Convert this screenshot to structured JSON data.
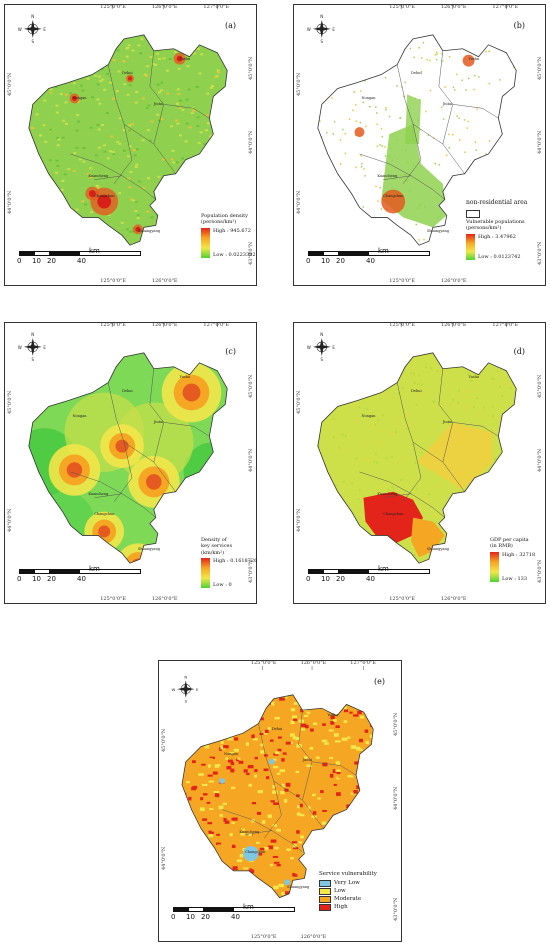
{
  "ticks_top": [
    "125°0'0\"E",
    "126°0'0\"E",
    "127°0'0\"E"
  ],
  "ticks_bottom": [
    "125°0'0\"E",
    "126°0'0\"E"
  ],
  "ticks_left": [
    "45°0'0\"N",
    "44°0'0\"N"
  ],
  "ticks_right": [
    "45°0'0\"N",
    "44°0'0\"N",
    "43°0'0\"N"
  ],
  "scalebar": {
    "l0": "0",
    "l1": "10",
    "l2": "20",
    "l3": "40",
    "unit": "km"
  },
  "towns": [
    "Yushu",
    "Dehui",
    "Nongan",
    "Jiutai",
    "Changchun",
    "Kuancheng",
    "Shuangyang"
  ],
  "panels": {
    "a": {
      "label": "(a)",
      "legend_title": "Population density",
      "legend_unit": "(persons/km²)",
      "high": "High : 945.672",
      "low": "Low : 0.0223392"
    },
    "b": {
      "label": "(b)",
      "extra_title": "non-residential area",
      "legend_title": "Vulnerable populations",
      "legend_unit": "(persons/km²)",
      "high": "High : 3.47962",
      "low": "Low : 0.0123742"
    },
    "c": {
      "label": "(c)",
      "legend_title": "Density of",
      "legend_title2": "key services",
      "legend_unit": "(km/km²)",
      "high": "High : 0.1618726",
      "low": "Low : 0"
    },
    "d": {
      "label": "(d)",
      "legend_title": "GDP per capita",
      "legend_unit": "(in RMB)",
      "high": "High : 32718",
      "low": "Low : 133"
    },
    "e": {
      "label": "(e)",
      "legend_title": "Service vulnerability",
      "cats": [
        "Very Low",
        "Low",
        "Moderate",
        "High"
      ],
      "cat_colors": [
        "#7ec8e3",
        "#f2e64a",
        "#f5a623",
        "#e3241a"
      ]
    }
  }
}
